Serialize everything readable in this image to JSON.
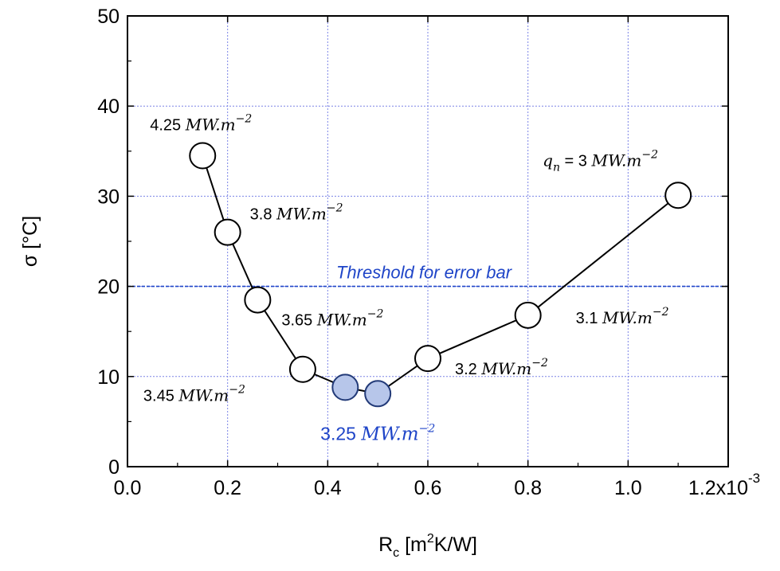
{
  "chart_data": {
    "type": "scatter",
    "xlabel": {
      "main": "R",
      "sub": "c",
      "unit_pre": " [m",
      "sup": "2",
      "unit_post": "K/W]"
    },
    "ylabel": "σ [°C]",
    "x_tick_labels": [
      "0.0",
      "0.2",
      "0.4",
      "0.6",
      "0.8",
      "1.0",
      "1.2x10"
    ],
    "x_exponent": "-3",
    "y_tick_labels": [
      "0",
      "10",
      "20",
      "30",
      "40",
      "50"
    ],
    "x_ticks": [
      0.0,
      0.2,
      0.4,
      0.6,
      0.8,
      1.0,
      1.2
    ],
    "y_ticks": [
      0,
      10,
      20,
      30,
      40,
      50
    ],
    "xlim": [
      0.0,
      1.2
    ],
    "ylim": [
      0,
      50
    ],
    "x_scale_factor": "1e-3",
    "grid": true,
    "series": [
      {
        "x": [
          0.15,
          0.2,
          0.26,
          0.35,
          0.435,
          0.5,
          0.6,
          0.8,
          1.1
        ],
        "y": [
          34.5,
          26.0,
          18.5,
          10.8,
          8.8,
          8.1,
          12.0,
          16.8,
          30.1
        ],
        "highlighted": [
          false,
          false,
          false,
          false,
          true,
          true,
          false,
          false,
          false
        ]
      }
    ],
    "threshold": {
      "y": 20,
      "label": "Threshold for error bar",
      "color": "#1f45c8"
    },
    "annotations": [
      {
        "num": "4.25 ",
        "text": "MW.m",
        "sup": "−2",
        "anchor_x": 0.15,
        "anchor_y": 34.5
      },
      {
        "num": "3.8 ",
        "text": "MW.m",
        "sup": "−2",
        "anchor_x": 0.2,
        "anchor_y": 26.0
      },
      {
        "num": "3.65 ",
        "text": "MW.m",
        "sup": "−2",
        "anchor_x": 0.26,
        "anchor_y": 18.5
      },
      {
        "num": "3.45 ",
        "text": "MW.m",
        "sup": "−2",
        "anchor_x": 0.35,
        "anchor_y": 10.8
      },
      {
        "num": "3.25 ",
        "text": "MW.m",
        "sup": "−2",
        "anchor_x": 0.5,
        "anchor_y": 8.1,
        "highlight": true
      },
      {
        "num": "3.2 ",
        "text": "MW.m",
        "sup": "−2",
        "anchor_x": 0.6,
        "anchor_y": 12.0
      },
      {
        "num": "3.1 ",
        "text": "MW.m",
        "sup": "−2",
        "anchor_x": 0.8,
        "anchor_y": 16.8
      },
      {
        "pre": "q",
        "pre_sub": "n",
        "num": " = 3 ",
        "text": "MW.m",
        "sup": "−2",
        "anchor_x": 1.1,
        "anchor_y": 30.1
      }
    ],
    "colors": {
      "highlight_fill": "#b7c6ea",
      "highlight_stroke": "#223a78",
      "grid": "#7b84e6",
      "threshold": "#1f45c8"
    }
  }
}
